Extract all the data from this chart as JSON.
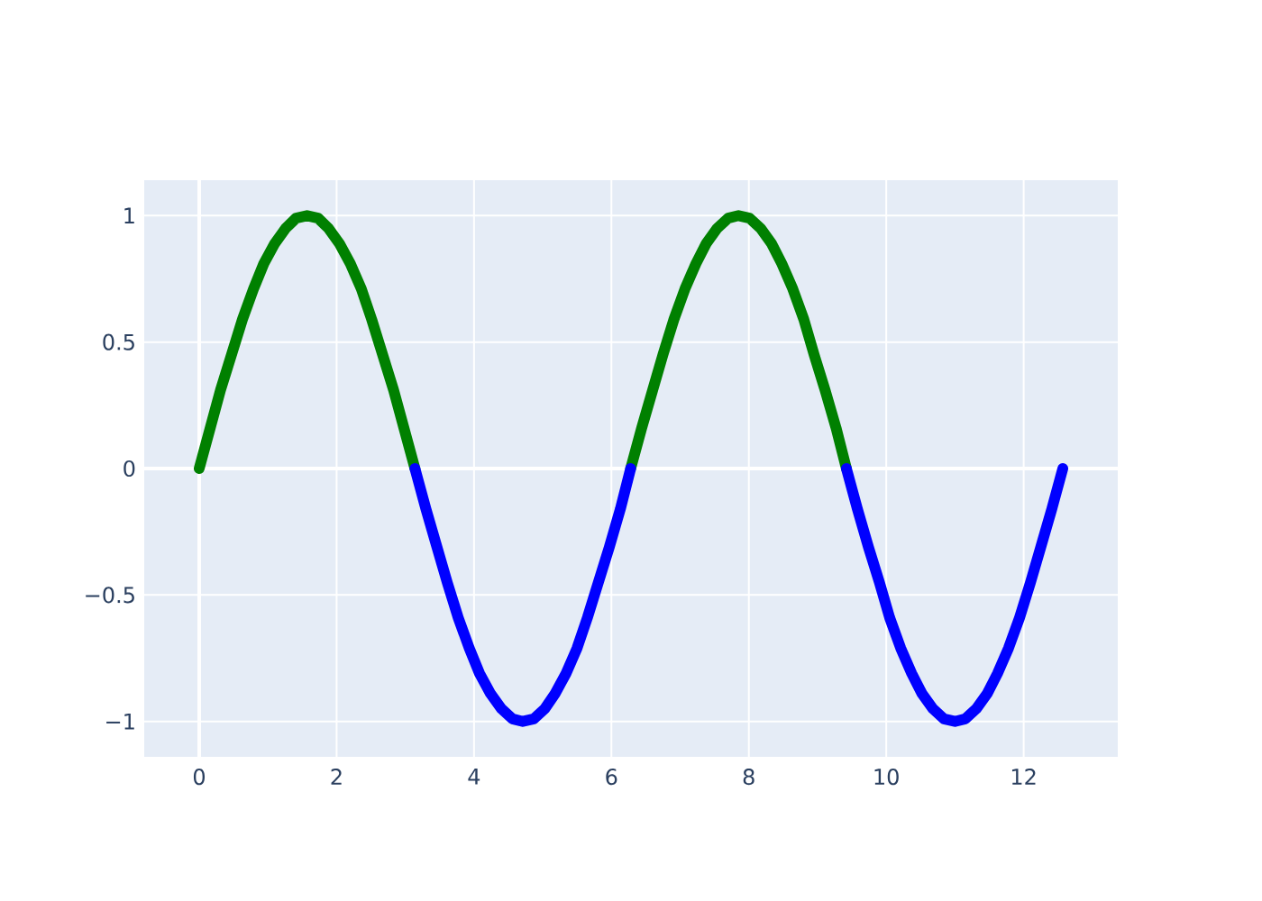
{
  "chart_data": {
    "type": "line",
    "xlim": [
      -0.8,
      13.37
    ],
    "ylim": [
      -1.14,
      1.14
    ],
    "xticks": [
      0,
      2,
      4,
      6,
      8,
      10,
      12
    ],
    "yticks": [
      {
        "value": -1,
        "label": "−1"
      },
      {
        "value": -0.5,
        "label": "−0.5"
      },
      0,
      0.5,
      1
    ],
    "grid": true,
    "series": [
      {
        "color": "#008000",
        "x": [
          0,
          0.16,
          0.31,
          0.47,
          0.63,
          0.79,
          0.94,
          1.1,
          1.26,
          1.41,
          1.57,
          1.73,
          1.88,
          2.04,
          2.2,
          2.36,
          2.51,
          2.67,
          2.83,
          2.98,
          3.14,
          null,
          6.28,
          6.44,
          6.6,
          6.75,
          6.91,
          7.07,
          7.23,
          7.38,
          7.54,
          7.7,
          7.85,
          8.01,
          8.17,
          8.33,
          8.48,
          8.64,
          8.8,
          8.95,
          9.11,
          9.27,
          9.42
        ],
        "values": [
          0,
          0.16,
          0.31,
          0.45,
          0.59,
          0.71,
          0.81,
          0.89,
          0.95,
          0.99,
          1,
          0.99,
          0.95,
          0.89,
          0.81,
          0.71,
          0.59,
          0.45,
          0.31,
          0.16,
          0,
          null,
          0,
          0.16,
          0.31,
          0.45,
          0.59,
          0.71,
          0.81,
          0.89,
          0.95,
          0.99,
          1,
          0.99,
          0.95,
          0.89,
          0.81,
          0.71,
          0.59,
          0.45,
          0.31,
          0.16,
          0
        ]
      },
      {
        "color": "#0000ff",
        "x": [
          3.14,
          3.3,
          3.46,
          3.61,
          3.77,
          3.93,
          4.08,
          4.24,
          4.4,
          4.56,
          4.71,
          4.87,
          5.03,
          5.18,
          5.34,
          5.5,
          5.65,
          5.81,
          5.97,
          6.13,
          6.28,
          null,
          9.42,
          9.58,
          9.74,
          9.9,
          10.05,
          10.21,
          10.37,
          10.52,
          10.68,
          10.84,
          11,
          11.15,
          11.31,
          11.47,
          11.62,
          11.78,
          11.94,
          12.1,
          12.25,
          12.41,
          12.57
        ],
        "values": [
          0,
          -0.16,
          -0.31,
          -0.45,
          -0.59,
          -0.71,
          -0.81,
          -0.89,
          -0.95,
          -0.99,
          -1,
          -0.99,
          -0.95,
          -0.89,
          -0.81,
          -0.71,
          -0.59,
          -0.45,
          -0.31,
          -0.16,
          0,
          null,
          0,
          -0.16,
          -0.31,
          -0.45,
          -0.59,
          -0.71,
          -0.81,
          -0.89,
          -0.95,
          -0.99,
          -1,
          -0.99,
          -0.95,
          -0.89,
          -0.81,
          -0.71,
          -0.59,
          -0.45,
          -0.31,
          -0.16,
          0
        ]
      }
    ]
  }
}
